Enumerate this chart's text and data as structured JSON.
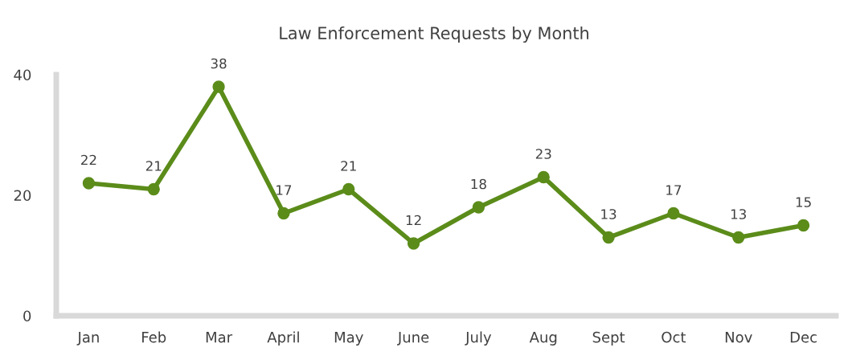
{
  "chart_data": {
    "type": "line",
    "title": "Law Enforcement Requests by Month",
    "categories": [
      "Jan",
      "Feb",
      "Mar",
      "April",
      "May",
      "June",
      "July",
      "Aug",
      "Sept",
      "Oct",
      "Nov",
      "Dec"
    ],
    "series": [
      {
        "color": "#5b8c1a",
        "values": [
          22,
          21,
          38,
          17,
          21,
          12,
          18,
          23,
          13,
          17,
          13,
          15
        ]
      }
    ],
    "ylim": [
      0,
      40
    ],
    "yticks": [
      0,
      20,
      40
    ],
    "marker": "circle",
    "line_style": "solid",
    "data_labels": true,
    "grid": false,
    "legend": false
  }
}
